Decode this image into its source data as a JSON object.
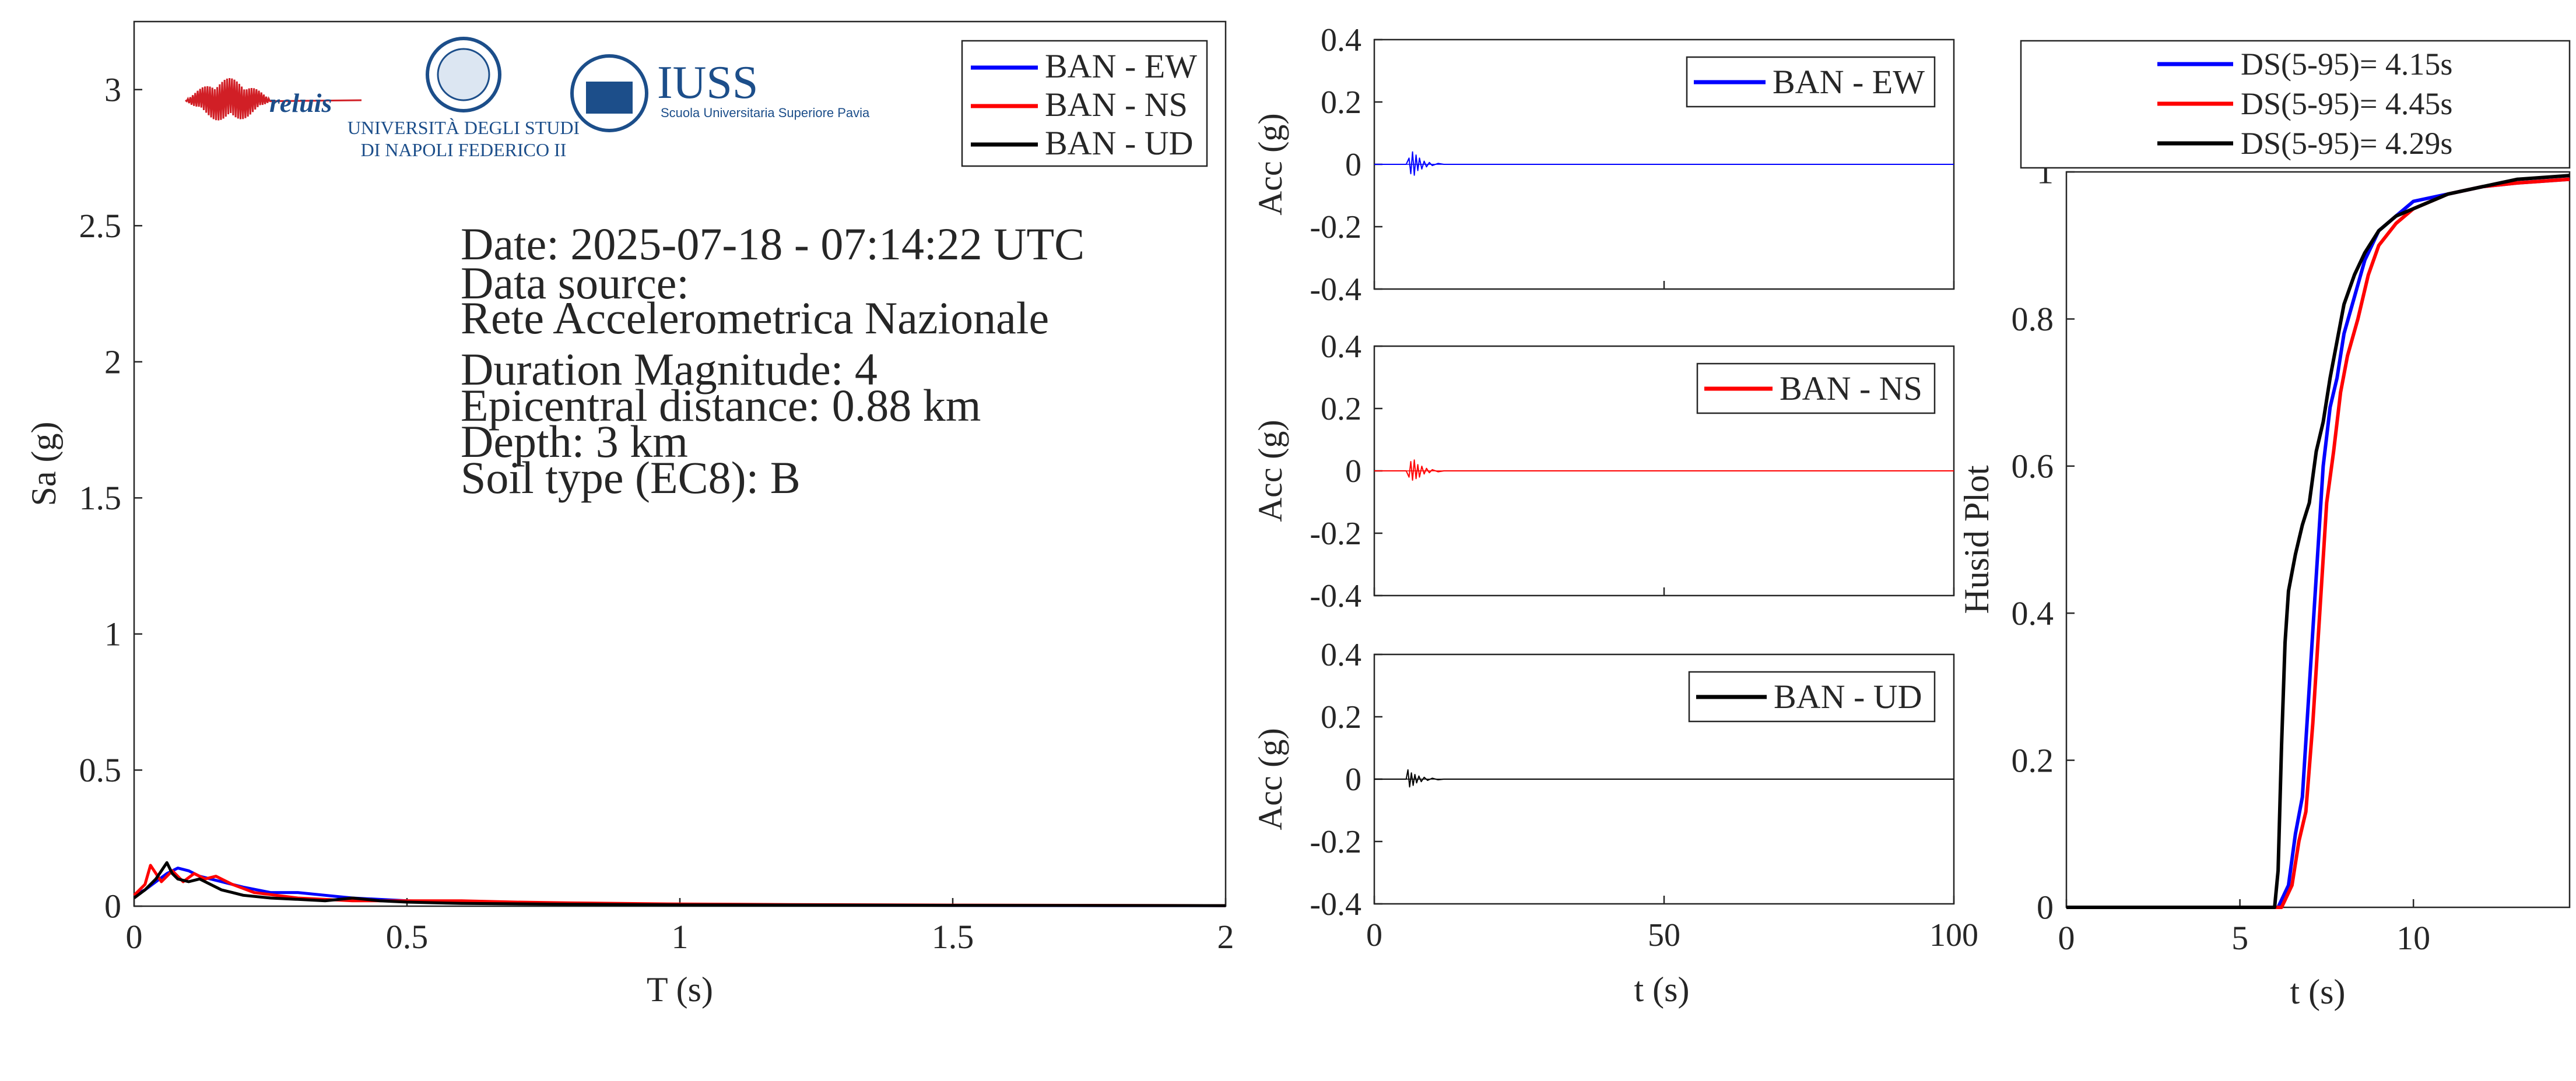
{
  "figure": {
    "info": {
      "date": "Date: 2025-07-18 - 07:14:22 UTC",
      "source_label": "Data source:",
      "source_name": "Rete Accelerometrica Nazionale",
      "magnitude": "Duration Magnitude: 4",
      "distance": "Epicentral distance: 0.88 km",
      "depth": "Depth: 3 km",
      "soil": "Soil type (EC8): B"
    },
    "logos": {
      "reluis": "reluis",
      "unina_line1": "UNIVERSITÀ DEGLI STUDI",
      "unina_line2": "DI NAPOLI FEDERICO II",
      "iuss": "IUSS",
      "iuss_sub": "Scuola Universitaria Superiore Pavia"
    }
  },
  "colors": {
    "ew": "#0000ff",
    "ns": "#ff0000",
    "ud": "#000000",
    "axis": "#262626",
    "logo_red": "#d11f26",
    "logo_blue": "#1c4e8a"
  },
  "chart_data": [
    {
      "id": "spectrum",
      "type": "line",
      "xlabel": "T (s)",
      "ylabel": "Sa (g)",
      "xlim": [
        0,
        2
      ],
      "ylim": [
        0,
        3.25
      ],
      "xticks": [
        0,
        0.5,
        1,
        1.5,
        2
      ],
      "xtick_labels": [
        "0",
        "0.5",
        "1",
        "1.5",
        "2"
      ],
      "yticks": [
        0,
        0.5,
        1,
        1.5,
        2,
        2.5,
        3
      ],
      "ytick_labels": [
        "0",
        "0.5",
        "1",
        "1.5",
        "2",
        "2.5",
        "3"
      ],
      "legend_position": "top-right",
      "series": [
        {
          "name": "BAN - EW",
          "color_key": "ew",
          "x": [
            0,
            0.02,
            0.04,
            0.06,
            0.08,
            0.1,
            0.12,
            0.14,
            0.16,
            0.2,
            0.25,
            0.3,
            0.35,
            0.4,
            0.5,
            0.6,
            0.7,
            0.8,
            1.0,
            1.2,
            1.5,
            1.8,
            2.0
          ],
          "y": [
            0.04,
            0.06,
            0.09,
            0.12,
            0.14,
            0.13,
            0.11,
            0.1,
            0.09,
            0.07,
            0.05,
            0.05,
            0.04,
            0.03,
            0.02,
            0.015,
            0.012,
            0.01,
            0.007,
            0.005,
            0.003,
            0.002,
            0.002
          ]
        },
        {
          "name": "BAN - NS",
          "color_key": "ns",
          "x": [
            0,
            0.02,
            0.03,
            0.05,
            0.07,
            0.09,
            0.11,
            0.13,
            0.15,
            0.18,
            0.22,
            0.3,
            0.4,
            0.5,
            0.6,
            0.7,
            0.8,
            1.0,
            1.2,
            1.5,
            1.8,
            2.0
          ],
          "y": [
            0.04,
            0.08,
            0.15,
            0.09,
            0.13,
            0.09,
            0.12,
            0.1,
            0.11,
            0.08,
            0.05,
            0.03,
            0.02,
            0.02,
            0.02,
            0.015,
            0.012,
            0.008,
            0.006,
            0.004,
            0.003,
            0.002
          ]
        },
        {
          "name": "BAN - UD",
          "color_key": "ud",
          "x": [
            0,
            0.02,
            0.04,
            0.05,
            0.06,
            0.07,
            0.08,
            0.1,
            0.12,
            0.14,
            0.16,
            0.18,
            0.2,
            0.25,
            0.3,
            0.35,
            0.4,
            0.45,
            0.5,
            0.6,
            0.8,
            1.0,
            1.5,
            2.0
          ],
          "y": [
            0.03,
            0.06,
            0.1,
            0.13,
            0.16,
            0.12,
            0.1,
            0.09,
            0.1,
            0.08,
            0.06,
            0.05,
            0.04,
            0.03,
            0.025,
            0.02,
            0.03,
            0.02,
            0.015,
            0.01,
            0.007,
            0.005,
            0.003,
            0.002
          ]
        }
      ]
    },
    {
      "id": "acc_ew",
      "type": "line",
      "xlabel": "",
      "ylabel": "Acc (g)",
      "xlim": [
        0,
        100
      ],
      "ylim": [
        -0.4,
        0.4
      ],
      "xticks": [
        0,
        50,
        100
      ],
      "xtick_labels": [],
      "yticks": [
        -0.4,
        -0.2,
        0,
        0.2,
        0.4
      ],
      "ytick_labels": [
        "-0.4",
        "-0.2",
        "0",
        "0.2",
        "0.4"
      ],
      "legend_position": "top-right",
      "series": [
        {
          "name": "BAN - EW",
          "color_key": "ew",
          "x": [
            0,
            5.5,
            6,
            6.3,
            6.6,
            6.9,
            7.2,
            7.5,
            7.8,
            8.2,
            8.6,
            9,
            9.5,
            10,
            11,
            12,
            14,
            100
          ],
          "y": [
            0,
            0,
            0.02,
            -0.03,
            0.04,
            -0.035,
            0.03,
            -0.02,
            0.02,
            -0.015,
            0.01,
            -0.008,
            0.006,
            -0.004,
            0.003,
            0,
            0,
            0
          ]
        }
      ]
    },
    {
      "id": "acc_ns",
      "type": "line",
      "xlabel": "",
      "ylabel": "Acc (g)",
      "xlim": [
        0,
        100
      ],
      "ylim": [
        -0.4,
        0.4
      ],
      "xticks": [
        0,
        50,
        100
      ],
      "xtick_labels": [],
      "yticks": [
        -0.4,
        -0.2,
        0,
        0.2,
        0.4
      ],
      "ytick_labels": [
        "-0.4",
        "-0.2",
        "0",
        "0.2",
        "0.4"
      ],
      "legend_position": "top-right",
      "series": [
        {
          "name": "BAN - NS",
          "color_key": "ns",
          "x": [
            0,
            5.5,
            6,
            6.3,
            6.6,
            6.9,
            7.2,
            7.5,
            7.8,
            8.2,
            8.6,
            9,
            9.5,
            10,
            11,
            12,
            14,
            100
          ],
          "y": [
            0,
            0,
            -0.02,
            0.03,
            -0.03,
            0.035,
            -0.025,
            0.02,
            -0.02,
            0.015,
            -0.01,
            0.008,
            -0.006,
            0.004,
            -0.003,
            0,
            0,
            0
          ]
        }
      ]
    },
    {
      "id": "acc_ud",
      "type": "line",
      "xlabel": "t (s)",
      "ylabel": "Acc (g)",
      "xlim": [
        0,
        100
      ],
      "ylim": [
        -0.4,
        0.4
      ],
      "xticks": [
        0,
        50,
        100
      ],
      "xtick_labels": [
        "0",
        "50",
        "100"
      ],
      "yticks": [
        -0.4,
        -0.2,
        0,
        0.2,
        0.4
      ],
      "ytick_labels": [
        "-0.4",
        "-0.2",
        "0",
        "0.2",
        "0.4"
      ],
      "legend_position": "top-right",
      "series": [
        {
          "name": "BAN - UD",
          "color_key": "ud",
          "x": [
            0,
            5.5,
            5.8,
            6.1,
            6.4,
            6.7,
            7,
            7.3,
            7.7,
            8.1,
            8.6,
            9.2,
            10,
            11,
            12,
            14,
            100
          ],
          "y": [
            0,
            0,
            0.03,
            -0.025,
            0.02,
            -0.02,
            0.015,
            -0.012,
            0.01,
            -0.008,
            0.006,
            -0.004,
            0.003,
            -0.002,
            0,
            0,
            0
          ]
        }
      ]
    },
    {
      "id": "husid",
      "type": "line",
      "xlabel": "t (s)",
      "ylabel": "Husid Plot",
      "xlim": [
        0,
        14.5
      ],
      "ylim": [
        0,
        1
      ],
      "xticks": [
        0,
        5,
        10
      ],
      "xtick_labels": [
        "0",
        "5",
        "10"
      ],
      "yticks": [
        0,
        0.2,
        0.4,
        0.6,
        0.8,
        1
      ],
      "ytick_labels": [
        "0",
        "0.2",
        "0.4",
        "0.6",
        "0.8",
        "1"
      ],
      "legend_position": "outside-top",
      "series": [
        {
          "name": "DS(5-95)= 4.15s",
          "color_key": "ew",
          "x": [
            0,
            6.1,
            6.2,
            6.4,
            6.6,
            6.8,
            7.0,
            7.2,
            7.4,
            7.6,
            7.8,
            8.0,
            8.3,
            8.6,
            9.0,
            9.5,
            10,
            11,
            12,
            13,
            14.5
          ],
          "y": [
            0,
            0,
            0.01,
            0.03,
            0.1,
            0.15,
            0.3,
            0.45,
            0.6,
            0.68,
            0.72,
            0.78,
            0.83,
            0.88,
            0.92,
            0.94,
            0.96,
            0.97,
            0.98,
            0.985,
            0.99
          ]
        },
        {
          "name": "DS(5-95)= 4.45s",
          "color_key": "ns",
          "x": [
            0,
            6.2,
            6.3,
            6.5,
            6.7,
            6.9,
            7.1,
            7.3,
            7.5,
            7.7,
            7.9,
            8.1,
            8.4,
            8.7,
            9.0,
            9.5,
            10,
            11,
            12,
            13,
            14.5
          ],
          "y": [
            0,
            0,
            0.01,
            0.03,
            0.09,
            0.13,
            0.25,
            0.4,
            0.55,
            0.62,
            0.7,
            0.75,
            0.8,
            0.86,
            0.9,
            0.93,
            0.95,
            0.97,
            0.98,
            0.985,
            0.99
          ]
        },
        {
          "name": "DS(5-95)= 4.29s",
          "color_key": "ud",
          "x": [
            0,
            6.0,
            6.1,
            6.2,
            6.3,
            6.4,
            6.6,
            6.8,
            7.0,
            7.2,
            7.4,
            7.6,
            7.8,
            8.0,
            8.3,
            8.6,
            9.0,
            9.5,
            10,
            11,
            12,
            13,
            14.5
          ],
          "y": [
            0,
            0,
            0.05,
            0.22,
            0.36,
            0.43,
            0.48,
            0.52,
            0.55,
            0.62,
            0.66,
            0.72,
            0.77,
            0.82,
            0.86,
            0.89,
            0.92,
            0.94,
            0.95,
            0.97,
            0.98,
            0.99,
            0.995
          ]
        }
      ]
    }
  ]
}
